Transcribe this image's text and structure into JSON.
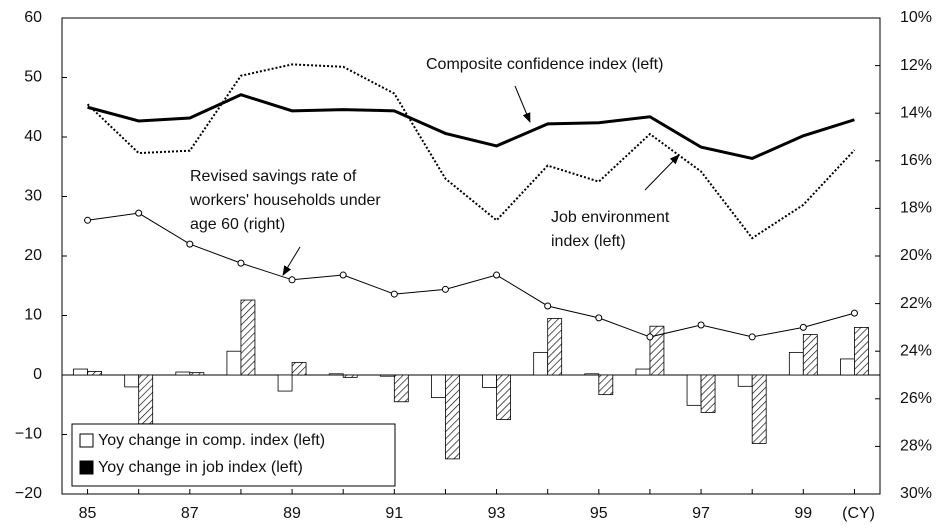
{
  "chart_data": {
    "type": "bar-line",
    "categories": [
      "85",
      null,
      "87",
      null,
      "89",
      null,
      "91",
      null,
      "93",
      null,
      "95",
      null,
      "97",
      null,
      "99",
      null
    ],
    "x_label": "(CY)",
    "ylim": [
      -20,
      60
    ],
    "yticks": [
      {
        "value": -20,
        "label": "−20"
      },
      {
        "value": -10,
        "label": "−10"
      },
      0,
      10,
      20,
      30,
      40,
      50,
      60
    ],
    "y2lim": [
      30,
      10
    ],
    "y2ticks": [
      {
        "value": 10,
        "label": "10%"
      },
      {
        "value": 12,
        "label": "12%"
      },
      {
        "value": 14,
        "label": "14%"
      },
      {
        "value": 16,
        "label": "16%"
      },
      {
        "value": 18,
        "label": "18%"
      },
      {
        "value": 20,
        "label": "20%"
      },
      {
        "value": 22,
        "label": "22%"
      },
      {
        "value": 24,
        "label": "24%"
      },
      {
        "value": 26,
        "label": "26%"
      },
      {
        "value": 28,
        "label": "28%"
      },
      {
        "value": 30,
        "label": "30%"
      }
    ],
    "legend": "bottom-left",
    "series": [
      {
        "name": "Yoy change in comp. index (left)",
        "kind": "bar",
        "color": "#ffffff",
        "legend_color": "#ffffff",
        "values": [
          1.0,
          -2.0,
          0.5,
          4.0,
          -2.7,
          0.2,
          -0.2,
          -3.8,
          -2.1,
          3.8,
          0.2,
          1.0,
          -5.1,
          -1.9,
          3.8,
          2.7
        ]
      },
      {
        "name": "Yoy change in job index (left)",
        "kind": "bar",
        "color": "hatch",
        "legend_color": "#000000",
        "values": [
          0.6,
          -8.2,
          0.4,
          12.6,
          2.1,
          -0.4,
          -4.5,
          -14.1,
          -7.5,
          9.5,
          -3.3,
          8.2,
          -6.3,
          -11.5,
          6.8,
          8.0
        ]
      },
      {
        "annotation": [
          "Composite confidence index (left)"
        ],
        "kind": "line",
        "color": "#000000",
        "style": "solid-thick",
        "values": [
          45.0,
          42.7,
          43.2,
          47.1,
          44.4,
          44.6,
          44.4,
          40.6,
          38.5,
          42.2,
          42.4,
          43.4,
          38.3,
          36.4,
          40.2,
          42.9
        ]
      },
      {
        "annotation": [
          "Job environment",
          "index (left)"
        ],
        "kind": "line",
        "color": "#000000",
        "style": "dotted",
        "values": [
          45.5,
          37.3,
          37.7,
          50.3,
          52.2,
          51.8,
          47.3,
          33.0,
          26.0,
          35.2,
          32.5,
          40.5,
          34.2,
          23.0,
          28.6,
          37.8
        ]
      },
      {
        "annotation": [
          "Revised savings rate of",
          "workers' households under",
          "age 60 (right)"
        ],
        "kind": "line",
        "color": "#000000",
        "style": "markers",
        "axis": "y2",
        "values": [
          18.5,
          18.2,
          19.5,
          20.3,
          21.0,
          20.8,
          21.6,
          21.4,
          20.8,
          22.1,
          22.6,
          23.4,
          22.9,
          23.4,
          23.0,
          22.4
        ]
      }
    ]
  }
}
